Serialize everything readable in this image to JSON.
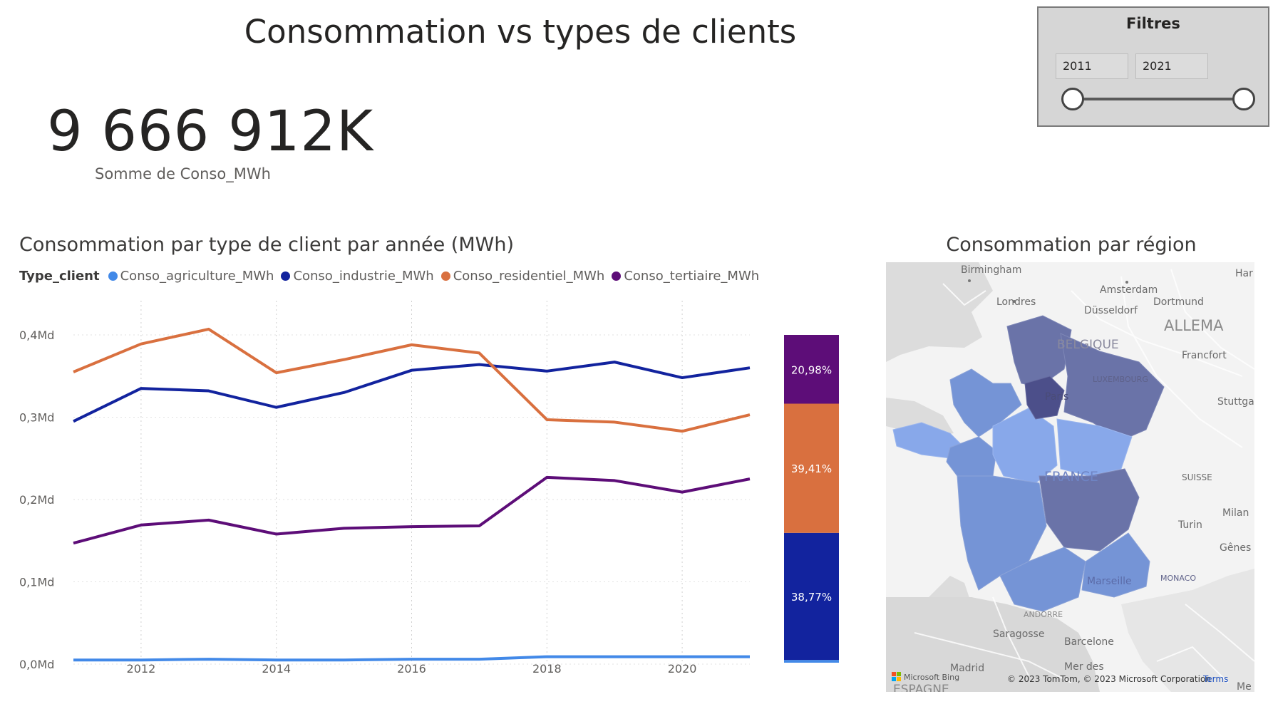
{
  "page": {
    "title": "Consommation vs types de clients"
  },
  "kpi": {
    "value": "9 666 912K",
    "label": "Somme de Conso_MWh"
  },
  "filters": {
    "title": "Filtres",
    "year_start": "2011",
    "year_end": "2021",
    "range": [
      2011,
      2021
    ]
  },
  "line_chart": {
    "title": "Consommation par type de client par année (MWh)",
    "legend_title": "Type_client"
  },
  "map": {
    "title": "Consommation par région",
    "labels": {
      "birmingham": "Birmingham",
      "londres": "Londres",
      "amsterdam": "Amsterdam",
      "dusseldorf": "Düsseldorf",
      "dortmund": "Dortmund",
      "allemagne": "ALLEMA",
      "har": "Har",
      "belgique": "BELGIQUE",
      "francfort": "Francfort",
      "luxembourg": "LUXEMBOURG",
      "stuttgart": "Stuttga",
      "paris": "Paris",
      "france": "FRANCE",
      "suisse": "SUISSE",
      "milan": "Milan",
      "turin": "Turin",
      "genes": "Gênes",
      "marseille": "Marseille",
      "monaco": "MONACO",
      "andorre": "ANDORRE",
      "saragosse": "Saragosse",
      "barcelone": "Barcelone",
      "madrid": "Madrid",
      "espagne": "ESPAGNE",
      "mer_des": "Mer des",
      "me": "Me"
    },
    "attribution": "© 2023 TomTom, © 2023 Microsoft Corporation",
    "terms": "Terms",
    "bing": "Microsoft Bing",
    "colors": {
      "light": "#88a8ea",
      "medium": "#7594d6",
      "dark": "#6a73a8",
      "darkest": "#4c4f8a"
    }
  },
  "chart_data": [
    {
      "type": "line",
      "title": "Consommation par type de client par année (MWh)",
      "legend_title": "Type_client",
      "legend_position": "top-left",
      "x": [
        2011,
        2012,
        2013,
        2014,
        2015,
        2016,
        2017,
        2018,
        2019,
        2020,
        2021
      ],
      "x_ticks": [
        2012,
        2014,
        2016,
        2018,
        2020
      ],
      "ylim": [
        0,
        0.42
      ],
      "y_ticks": [
        0,
        0.1,
        0.2,
        0.3,
        0.4
      ],
      "y_tick_labels": [
        "0,0Md",
        "0,1Md",
        "0,2Md",
        "0,3Md",
        "0,4Md"
      ],
      "grid": "vertical-dotted",
      "series": [
        {
          "name": "Conso_agriculture_MWh",
          "color": "#4289e8",
          "values": [
            0.005,
            0.005,
            0.006,
            0.005,
            0.005,
            0.006,
            0.006,
            0.009,
            0.009,
            0.009,
            0.009
          ]
        },
        {
          "name": "Conso_industrie_MWh",
          "color": "#12239e",
          "values": [
            0.295,
            0.335,
            0.332,
            0.312,
            0.33,
            0.357,
            0.364,
            0.356,
            0.367,
            0.348,
            0.36
          ]
        },
        {
          "name": "Conso_residentiel_MWh",
          "color": "#d9703f",
          "values": [
            0.355,
            0.389,
            0.407,
            0.354,
            0.37,
            0.388,
            0.378,
            0.297,
            0.294,
            0.283,
            0.303
          ]
        },
        {
          "name": "Conso_tertiaire_MWh",
          "color": "#5d0d78",
          "values": [
            0.147,
            0.169,
            0.175,
            0.158,
            0.165,
            0.167,
            0.168,
            0.227,
            0.223,
            0.209,
            0.225
          ]
        }
      ]
    },
    {
      "type": "bar",
      "stacked": "100%",
      "segments": [
        {
          "name": "Conso_agriculture_MWh",
          "color": "#4289e8",
          "value": 0.84,
          "label": ""
        },
        {
          "name": "Conso_industrie_MWh",
          "color": "#12239e",
          "value": 38.77,
          "label": "38,77%"
        },
        {
          "name": "Conso_residentiel_MWh",
          "color": "#d9703f",
          "value": 39.41,
          "label": "39,41%"
        },
        {
          "name": "Conso_tertiaire_MWh",
          "color": "#5d0d78",
          "value": 20.98,
          "label": "20,98%"
        }
      ]
    }
  ]
}
